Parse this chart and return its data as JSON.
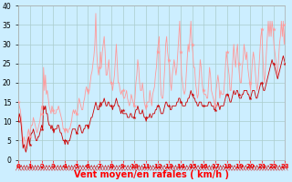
{
  "xlabel": "Vent moyen/en rafales ( km/h )",
  "bg_color": "#cceeff",
  "grid_color": "#aacccc",
  "ylim": [
    0,
    40
  ],
  "yticks": [
    0,
    5,
    10,
    15,
    20,
    25,
    30,
    35,
    40
  ],
  "xtick_labels": [
    "0",
    "1",
    "2",
    "3",
    "4",
    "5",
    "6",
    "7",
    "8",
    "9",
    "10",
    "11",
    "12",
    "13",
    "14",
    "15",
    "16",
    "17",
    "18",
    "19",
    "20",
    "21",
    "22",
    "23"
  ],
  "mean_color": "#cc0000",
  "gust_color": "#ff9999",
  "mean_wind": [
    10,
    12,
    11,
    9,
    6,
    3,
    4,
    3,
    2,
    3,
    5,
    6,
    4,
    6,
    7,
    7,
    8,
    7,
    6,
    5,
    5,
    6,
    6,
    7,
    8,
    9,
    8,
    14,
    13,
    14,
    12,
    12,
    10,
    9,
    9,
    8,
    9,
    8,
    7,
    8,
    8,
    8,
    9,
    9,
    8,
    7,
    7,
    6,
    5,
    5,
    4,
    5,
    5,
    4,
    5,
    5,
    6,
    7,
    8,
    8,
    8,
    8,
    7,
    7,
    8,
    9,
    9,
    8,
    7,
    7,
    8,
    8,
    9,
    9,
    9,
    8,
    9,
    10,
    11,
    11,
    12,
    13,
    14,
    15,
    14,
    13,
    13,
    14,
    15,
    14,
    15,
    15,
    16,
    15,
    14,
    14,
    15,
    15,
    14,
    14,
    14,
    13,
    14,
    14,
    15,
    16,
    15,
    14,
    14,
    13,
    12,
    13,
    12,
    12,
    12,
    12,
    12,
    11,
    11,
    11,
    12,
    12,
    11,
    11,
    11,
    12,
    13,
    13,
    14,
    13,
    12,
    12,
    12,
    13,
    12,
    11,
    11,
    10,
    11,
    11,
    11,
    12,
    11,
    11,
    12,
    12,
    12,
    13,
    13,
    14,
    14,
    14,
    13,
    12,
    12,
    12,
    13,
    14,
    15,
    15,
    14,
    14,
    14,
    13,
    13,
    14,
    14,
    14,
    14,
    14,
    15,
    15,
    16,
    16,
    15,
    15,
    14,
    14,
    14,
    14,
    15,
    15,
    16,
    16,
    17,
    18,
    17,
    17,
    16,
    16,
    15,
    15,
    14,
    14,
    15,
    15,
    15,
    14,
    14,
    14,
    14,
    14,
    14,
    14,
    15,
    15,
    15,
    14,
    14,
    14,
    13,
    13,
    14,
    14,
    15,
    14,
    13,
    14,
    14,
    14,
    14,
    15,
    16,
    17,
    17,
    17,
    16,
    15,
    15,
    16,
    17,
    18,
    17,
    17,
    18,
    18,
    17,
    16,
    16,
    16,
    17,
    17,
    18,
    18,
    18,
    18,
    17,
    17,
    16,
    16,
    17,
    18,
    18,
    18,
    17,
    16,
    16,
    17,
    18,
    19,
    20,
    20,
    19,
    18,
    18,
    19,
    20,
    21,
    22,
    23,
    24,
    25,
    26,
    25,
    25,
    24,
    23,
    22,
    21,
    22,
    23,
    24,
    25,
    26,
    27,
    26,
    25
  ],
  "gust_wind": [
    15,
    14,
    13,
    11,
    8,
    4,
    6,
    5,
    3,
    4,
    7,
    8,
    6,
    8,
    9,
    9,
    11,
    10,
    9,
    8,
    7,
    8,
    9,
    10,
    12,
    14,
    13,
    24,
    18,
    22,
    17,
    18,
    16,
    14,
    13,
    12,
    14,
    13,
    12,
    12,
    12,
    13,
    13,
    14,
    13,
    12,
    11,
    10,
    8,
    8,
    7,
    8,
    8,
    7,
    8,
    8,
    9,
    10,
    12,
    13,
    12,
    13,
    12,
    12,
    14,
    16,
    15,
    14,
    13,
    13,
    15,
    16,
    18,
    19,
    18,
    17,
    18,
    20,
    22,
    23,
    25,
    27,
    30,
    38,
    28,
    24,
    22,
    24,
    28,
    24,
    28,
    30,
    32,
    28,
    22,
    22,
    24,
    26,
    22,
    20,
    20,
    18,
    20,
    22,
    26,
    30,
    25,
    20,
    20,
    18,
    17,
    18,
    17,
    16,
    16,
    17,
    18,
    16,
    15,
    14,
    15,
    17,
    16,
    15,
    14,
    16,
    20,
    22,
    26,
    24,
    20,
    18,
    18,
    20,
    18,
    15,
    14,
    13,
    15,
    15,
    15,
    18,
    16,
    14,
    17,
    18,
    19,
    22,
    24,
    28,
    30,
    32,
    22,
    17,
    16,
    16,
    20,
    24,
    30,
    32,
    28,
    26,
    24,
    20,
    18,
    22,
    24,
    26,
    24,
    22,
    24,
    28,
    32,
    36,
    28,
    22,
    20,
    18,
    17,
    18,
    22,
    26,
    30,
    28,
    32,
    36,
    30,
    28,
    24,
    24,
    20,
    18,
    16,
    17,
    22,
    26,
    24,
    20,
    18,
    17,
    17,
    17,
    16,
    16,
    20,
    24,
    22,
    18,
    17,
    16,
    15,
    14,
    18,
    20,
    22,
    20,
    16,
    18,
    17,
    17,
    17,
    20,
    24,
    28,
    26,
    24,
    22,
    18,
    18,
    22,
    26,
    30,
    26,
    24,
    28,
    30,
    25,
    22,
    20,
    20,
    24,
    26,
    30,
    28,
    26,
    28,
    24,
    22,
    20,
    18,
    22,
    26,
    28,
    26,
    23,
    20,
    18,
    20,
    24,
    28,
    32,
    34,
    28,
    22,
    20,
    24,
    28,
    32,
    36,
    32,
    36,
    32,
    36,
    34,
    30,
    28,
    26,
    24,
    22,
    26,
    30,
    32,
    36,
    32,
    36,
    30,
    35
  ],
  "n_points": 287,
  "marker_hours": [
    0,
    1,
    2,
    3,
    4,
    5,
    6,
    7,
    8,
    9,
    10,
    11,
    12,
    13,
    14,
    15,
    16,
    17,
    18,
    19,
    20,
    21,
    22,
    23
  ]
}
